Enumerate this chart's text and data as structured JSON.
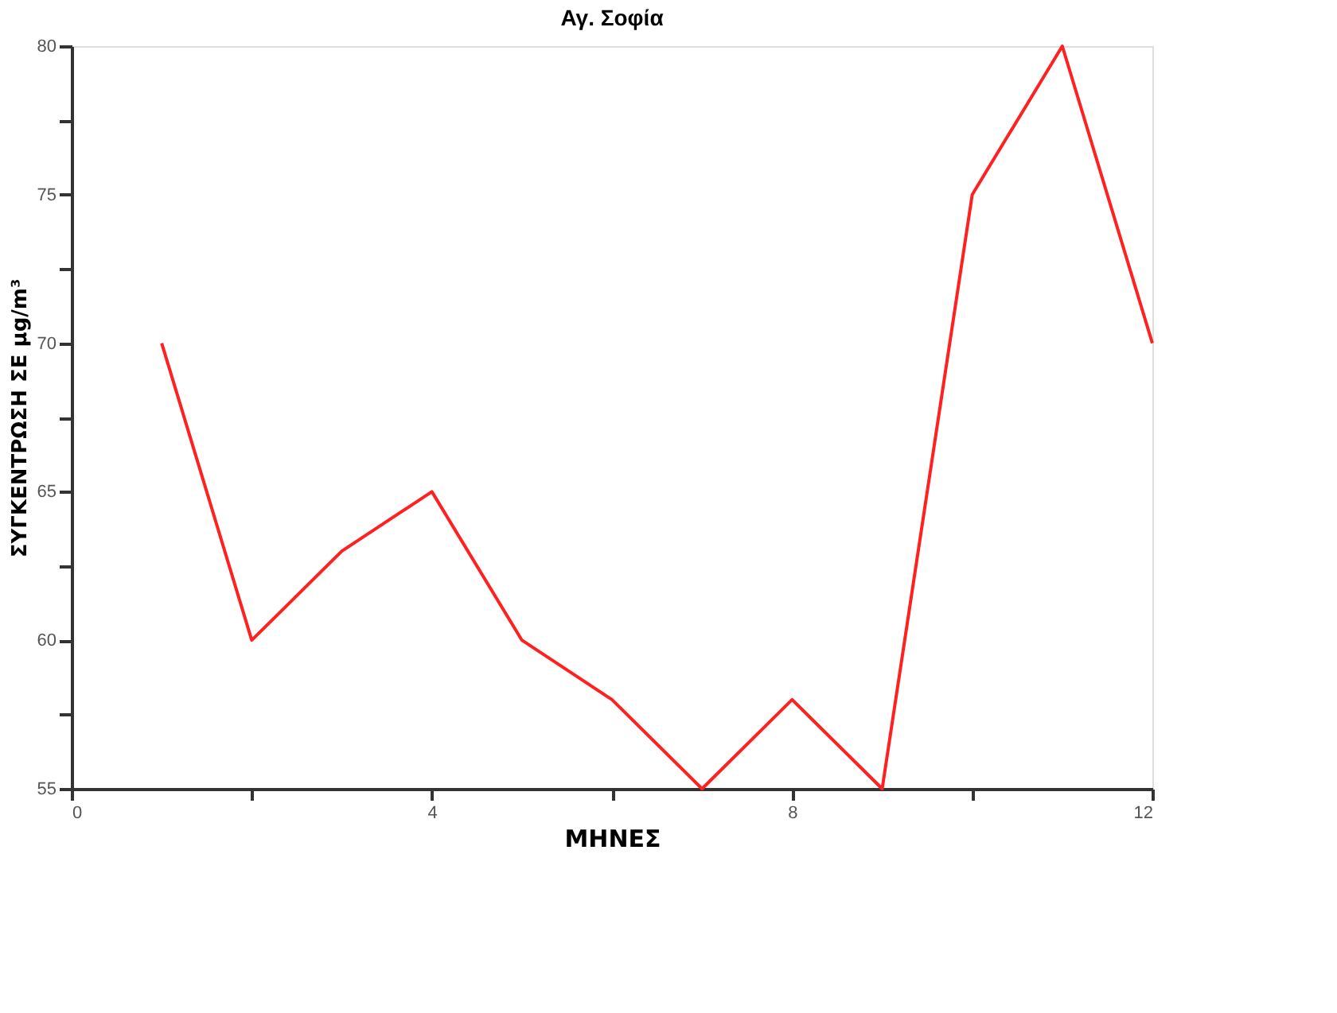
{
  "chart_data": {
    "type": "line",
    "title": "Αγ. Σοφία",
    "xlabel": "ΜΗΝΕΣ",
    "ylabel": "ΣΥΓΚΕΝΤΡΩΣΗ ΣΕ μg/m³",
    "x": [
      1,
      2,
      3,
      4,
      5,
      6,
      7,
      8,
      9,
      10,
      11,
      12
    ],
    "series": [
      {
        "color": "#ff2020",
        "values": [
          70,
          60,
          63,
          65,
          60,
          58,
          55,
          58,
          55,
          75,
          80,
          70
        ]
      }
    ],
    "xlim": [
      0,
      12
    ],
    "xticks": [
      0,
      {
        "value": 2,
        "label": null
      },
      4,
      {
        "value": 6,
        "label": null
      },
      8,
      {
        "value": 10,
        "label": null
      },
      12
    ],
    "ylim": [
      55,
      80
    ],
    "yticks": [
      55,
      {
        "value": 57.5,
        "label": null
      },
      60,
      {
        "value": 62.5,
        "label": null
      },
      65,
      {
        "value": 67.5,
        "label": null
      },
      70,
      {
        "value": 72.5,
        "label": null
      },
      75,
      {
        "value": 77.5,
        "label": null
      },
      80
    ],
    "grid": false,
    "marker": "none",
    "line_style": "solid"
  }
}
